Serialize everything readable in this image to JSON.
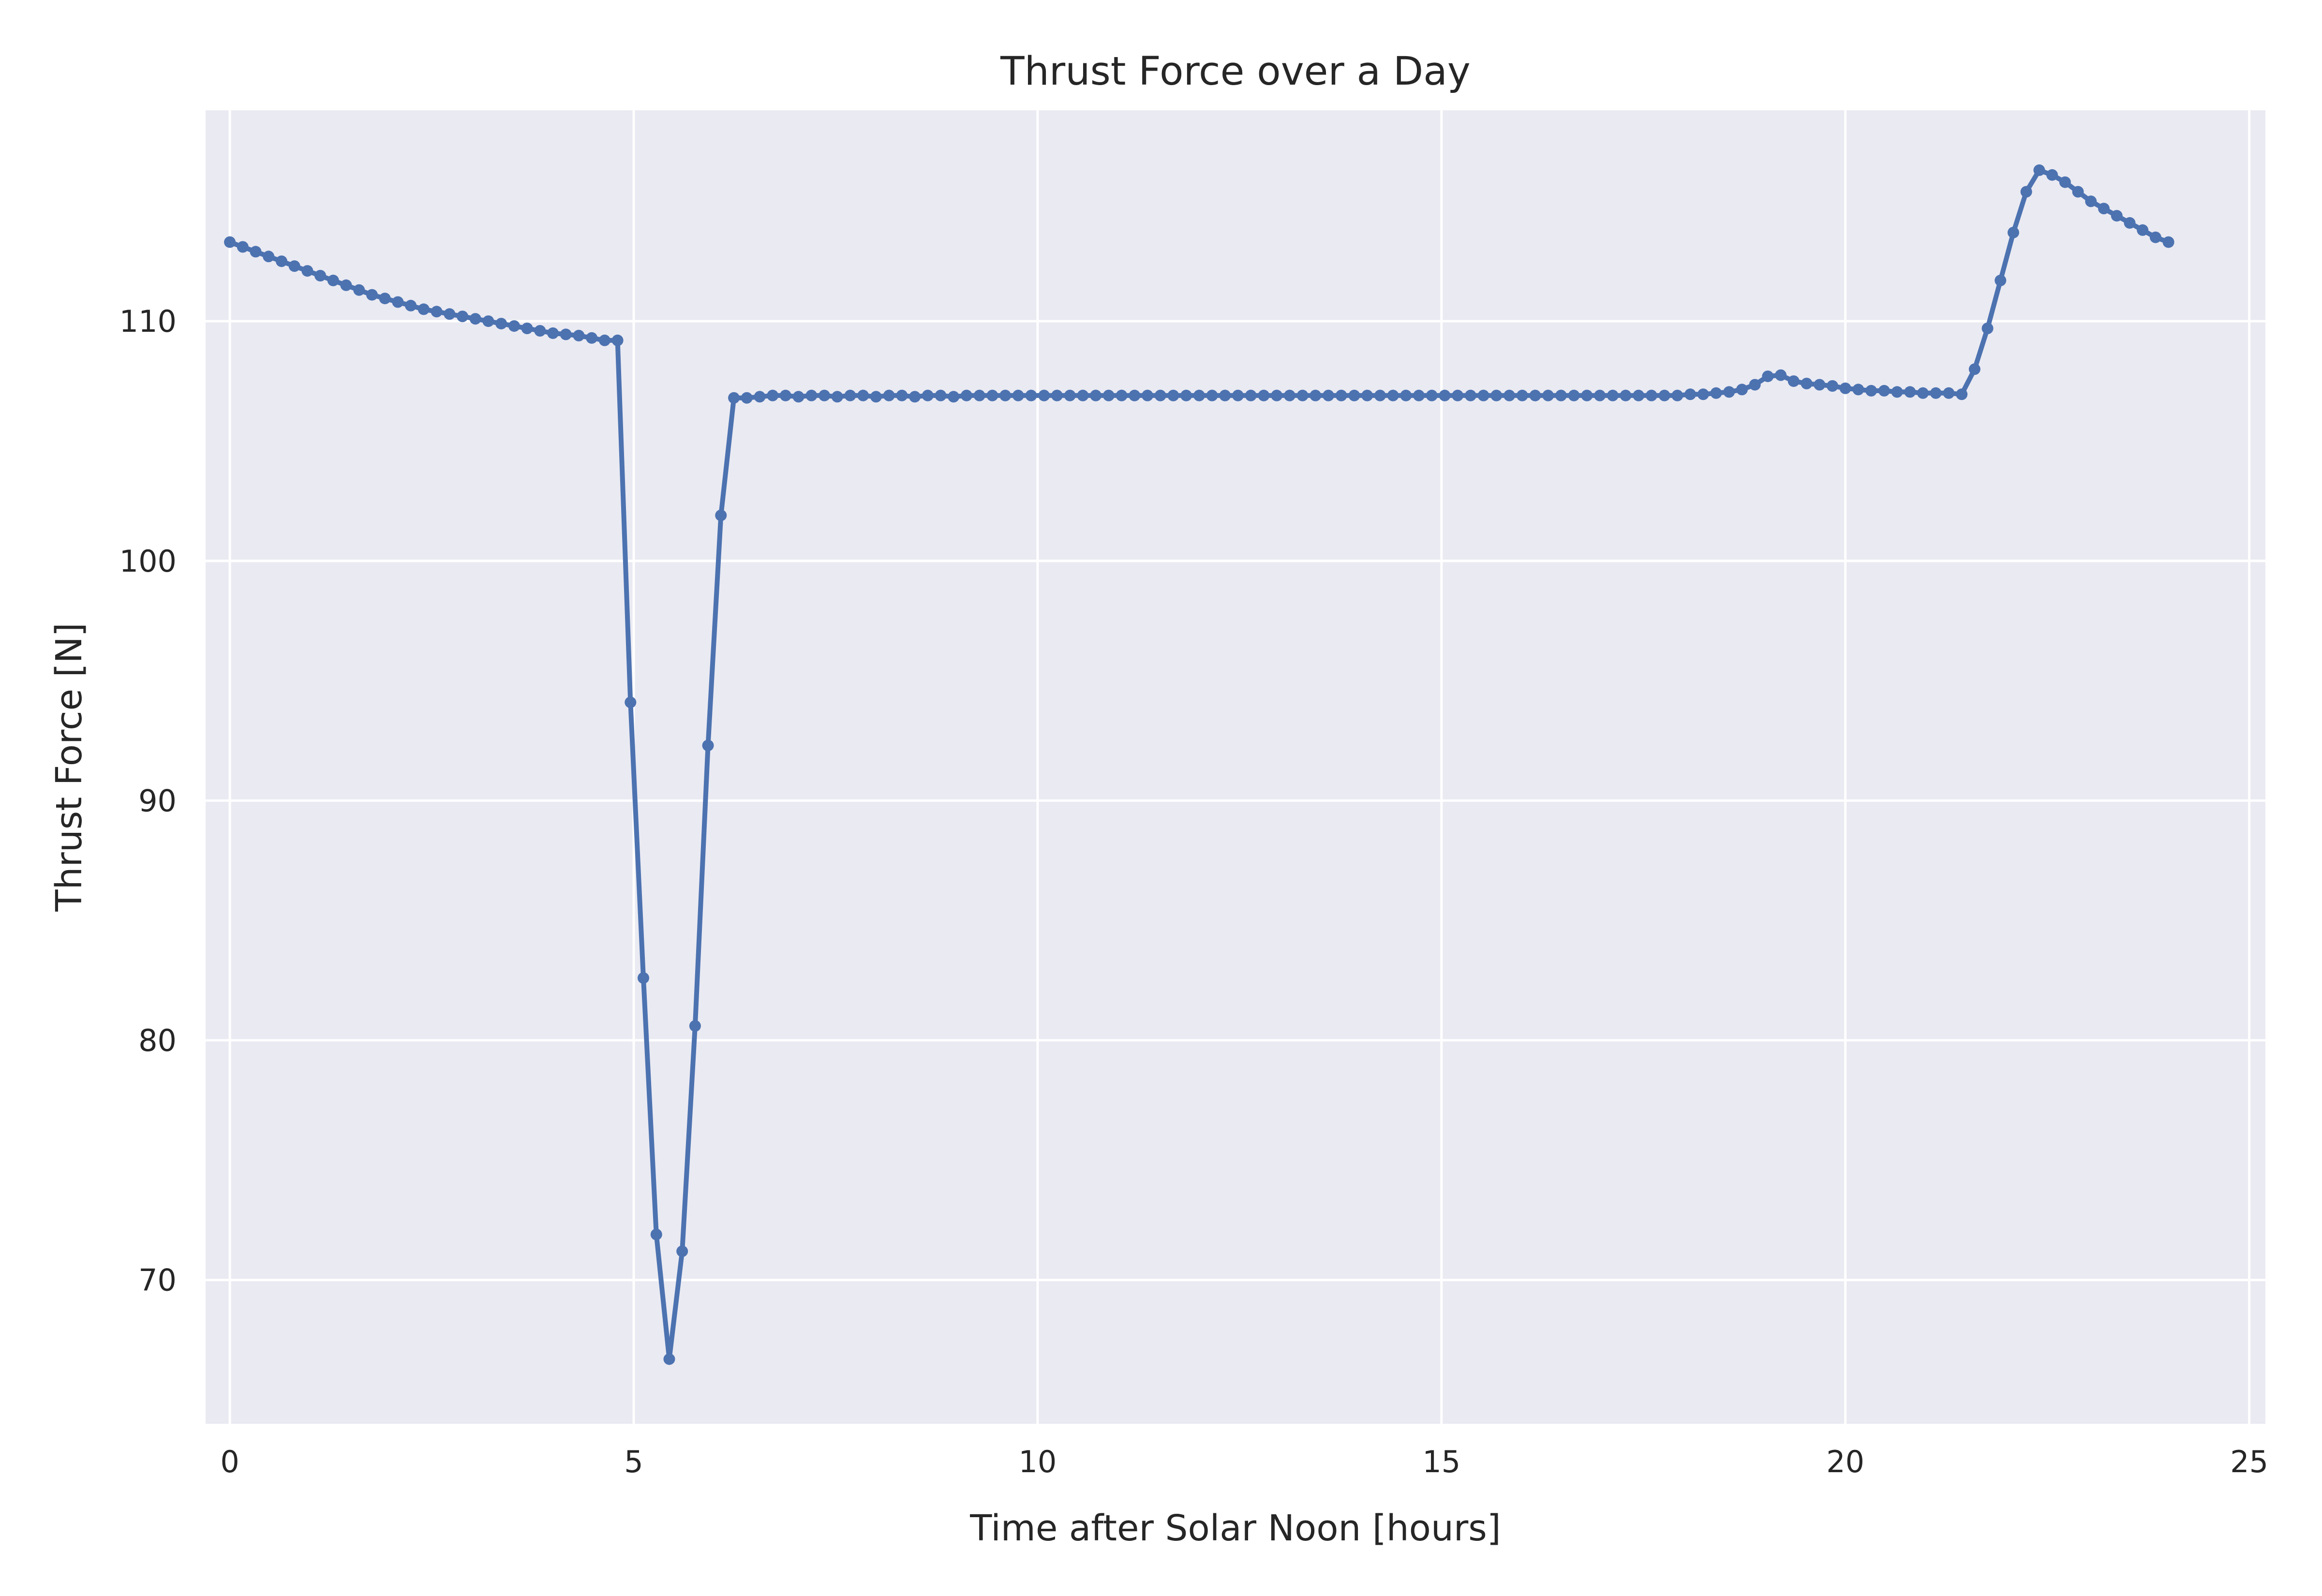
{
  "chart_data": {
    "type": "line",
    "title": "Thrust Force over a Day",
    "xlabel": "Time after Solar Noon [hours]",
    "ylabel": "Thrust Force [N]",
    "xlim": [
      -0.3,
      25.2
    ],
    "ylim": [
      64,
      118.8
    ],
    "xticks": [
      0,
      5,
      10,
      15,
      20,
      25
    ],
    "yticks": [
      70,
      80,
      90,
      100,
      110
    ],
    "grid": true,
    "background": "#eaeaf2",
    "series": [
      {
        "color": "#4c72b0",
        "x": [
          0.0,
          0.16,
          0.32,
          0.48,
          0.64,
          0.8,
          0.96,
          1.12,
          1.28,
          1.44,
          1.6,
          1.76,
          1.92,
          2.08,
          2.24,
          2.4,
          2.56,
          2.72,
          2.88,
          3.04,
          3.2,
          3.36,
          3.52,
          3.68,
          3.84,
          4.0,
          4.16,
          4.32,
          4.48,
          4.64,
          4.8,
          4.96,
          5.12,
          5.28,
          5.44,
          5.6,
          5.76,
          5.92,
          6.08,
          6.24,
          6.4,
          6.56,
          6.72,
          6.88,
          7.04,
          7.2,
          7.36,
          7.52,
          7.68,
          7.84,
          8.0,
          8.16,
          8.32,
          8.48,
          8.64,
          8.8,
          8.96,
          9.12,
          9.28,
          9.44,
          9.6,
          9.76,
          9.92,
          10.08,
          10.24,
          10.4,
          10.56,
          10.72,
          10.88,
          11.04,
          11.2,
          11.36,
          11.52,
          11.68,
          11.84,
          12.0,
          12.16,
          12.32,
          12.48,
          12.64,
          12.8,
          12.96,
          13.12,
          13.28,
          13.44,
          13.6,
          13.76,
          13.92,
          14.08,
          14.24,
          14.4,
          14.56,
          14.72,
          14.88,
          15.04,
          15.2,
          15.36,
          15.52,
          15.68,
          15.84,
          16.0,
          16.16,
          16.32,
          16.48,
          16.64,
          16.8,
          16.96,
          17.12,
          17.28,
          17.44,
          17.6,
          17.76,
          17.92,
          18.08,
          18.24,
          18.4,
          18.56,
          18.72,
          18.88,
          19.04,
          19.2,
          19.36,
          19.52,
          19.68,
          19.84,
          20.0,
          20.16,
          20.32,
          20.48,
          20.64,
          20.8,
          20.96,
          21.12,
          21.28,
          21.44,
          21.6,
          21.76,
          21.92,
          22.08,
          22.24,
          22.4,
          22.56,
          22.72,
          22.88,
          23.04,
          23.2,
          23.36,
          23.52,
          23.68,
          23.84,
          24.0
        ],
        "y": [
          113.3,
          113.1,
          112.9,
          112.7,
          112.5,
          112.3,
          112.1,
          111.9,
          111.7,
          111.5,
          111.3,
          111.1,
          110.95,
          110.8,
          110.65,
          110.5,
          110.4,
          110.3,
          110.2,
          110.1,
          110.0,
          109.9,
          109.8,
          109.7,
          109.6,
          109.5,
          109.45,
          109.4,
          109.3,
          109.2,
          109.2,
          94.1,
          82.6,
          71.9,
          66.7,
          71.2,
          80.6,
          92.3,
          101.9,
          106.8,
          106.8,
          106.85,
          106.9,
          106.9,
          106.85,
          106.9,
          106.9,
          106.85,
          106.9,
          106.9,
          106.85,
          106.9,
          106.9,
          106.85,
          106.9,
          106.9,
          106.85,
          106.9,
          106.9,
          106.9,
          106.9,
          106.9,
          106.9,
          106.9,
          106.9,
          106.9,
          106.9,
          106.9,
          106.9,
          106.9,
          106.9,
          106.9,
          106.9,
          106.9,
          106.9,
          106.9,
          106.9,
          106.9,
          106.9,
          106.9,
          106.9,
          106.9,
          106.9,
          106.9,
          106.9,
          106.9,
          106.9,
          106.9,
          106.9,
          106.9,
          106.9,
          106.9,
          106.9,
          106.9,
          106.9,
          106.9,
          106.9,
          106.9,
          106.9,
          106.9,
          106.9,
          106.9,
          106.9,
          106.9,
          106.9,
          106.9,
          106.9,
          106.9,
          106.9,
          106.9,
          106.9,
          106.9,
          106.9,
          106.95,
          106.95,
          107.0,
          107.05,
          107.15,
          107.35,
          107.7,
          107.75,
          107.5,
          107.4,
          107.35,
          107.3,
          107.2,
          107.15,
          107.1,
          107.1,
          107.05,
          107.05,
          107.0,
          107.0,
          107.0,
          106.95,
          108.0,
          109.7,
          111.7,
          113.7,
          115.4,
          116.3,
          116.1,
          115.8,
          115.4,
          115.0,
          114.7,
          114.4,
          114.1,
          113.8,
          113.5,
          113.3
        ]
      }
    ]
  }
}
